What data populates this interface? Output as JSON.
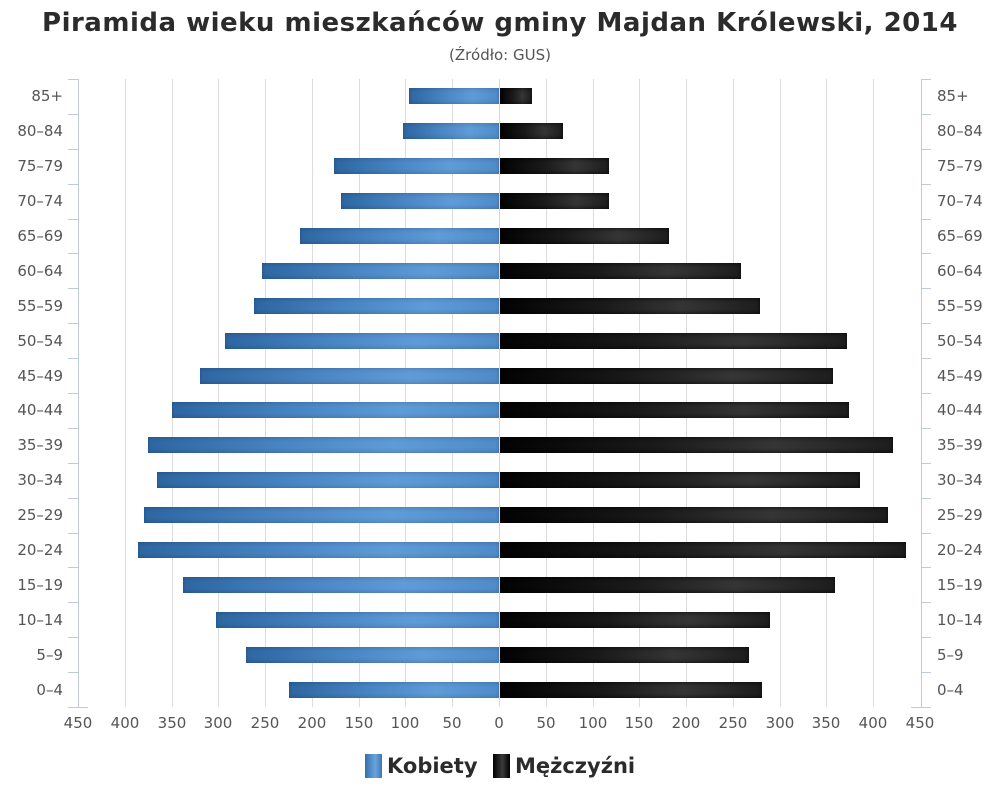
{
  "title": "Piramida wieku mieszkańców gminy Majdan Królewski, 2014",
  "subtitle": "(Źródło: GUS)",
  "colors": {
    "female": "#4a86c4",
    "male": "#1a1a1a",
    "grid": "#dcdcdc",
    "axis": "#c0cbd8",
    "text": "#555555"
  },
  "x_axis": {
    "left_ticks": [
      "450",
      "400",
      "350",
      "300",
      "250",
      "200",
      "150",
      "100",
      "50",
      "0"
    ],
    "right_ticks": [
      "50",
      "100",
      "150",
      "200",
      "250",
      "300",
      "350",
      "400",
      "450"
    ]
  },
  "legend": [
    {
      "label": "Kobiety",
      "series": "female"
    },
    {
      "label": "Mężczyźni",
      "series": "male"
    }
  ],
  "chart_data": {
    "type": "bar",
    "subtype": "population-pyramid",
    "title": "Piramida wieku mieszkańców gminy Majdan Królewski, 2014",
    "subtitle": "(Źródło: GUS)",
    "orientation": "horizontal",
    "categories": [
      "85+",
      "80-84",
      "75-79",
      "70-74",
      "65-69",
      "60-64",
      "55-59",
      "50-54",
      "45-49",
      "40-44",
      "35-39",
      "30-34",
      "25-29",
      "20-24",
      "15-19",
      "10-14",
      "5-9",
      "0-4"
    ],
    "series": [
      {
        "name": "Kobiety",
        "side": "left",
        "color": "#4a86c4",
        "values": [
          96,
          103,
          176,
          169,
          213,
          253,
          262,
          293,
          320,
          350,
          375,
          366,
          379,
          386,
          338,
          303,
          270,
          225
        ]
      },
      {
        "name": "Mężczyźni",
        "side": "right",
        "color": "#1a1a1a",
        "values": [
          34,
          67,
          116,
          116,
          181,
          258,
          278,
          371,
          356,
          373,
          420,
          385,
          415,
          434,
          358,
          289,
          266,
          280
        ]
      }
    ],
    "xlabel": "",
    "ylabel": "",
    "xlim": [
      -450,
      450
    ],
    "x_ticks": [
      450,
      400,
      350,
      300,
      250,
      200,
      150,
      100,
      50,
      0,
      50,
      100,
      150,
      200,
      250,
      300,
      350,
      400,
      450
    ],
    "grid": true,
    "legend_position": "bottom"
  }
}
